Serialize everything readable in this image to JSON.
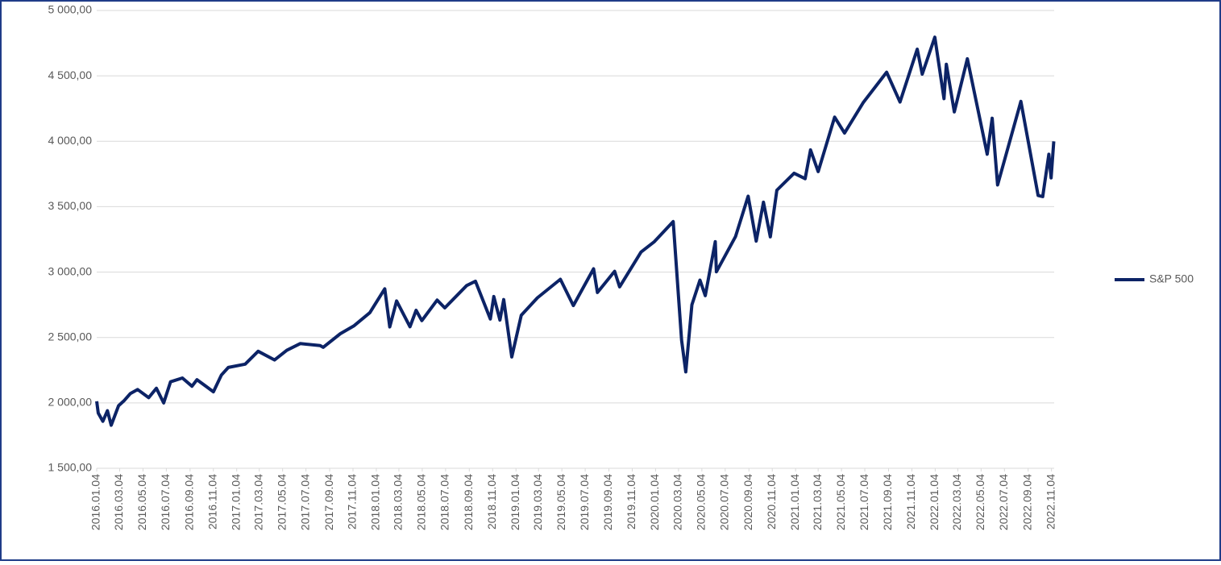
{
  "chart_data": {
    "type": "line",
    "x": [
      "2016.01.04",
      "2016.01.08",
      "2016.01.20",
      "2016.02.01",
      "2016.02.11",
      "2016.03.01",
      "2016.03.15",
      "2016.04.01",
      "2016.04.20",
      "2016.05.19",
      "2016.06.08",
      "2016.06.27",
      "2016.07.15",
      "2016.08.15",
      "2016.09.09",
      "2016.09.22",
      "2016.11.04",
      "2016.11.25",
      "2016.12.13",
      "2017.01.26",
      "2017.03.01",
      "2017.04.13",
      "2017.05.15",
      "2017.06.19",
      "2017.08.10",
      "2017.08.18",
      "2017.10.02",
      "2017.11.07",
      "2017.12.18",
      "2018.01.26",
      "2018.02.08",
      "2018.02.26",
      "2018.04.02",
      "2018.04.18",
      "2018.05.03",
      "2018.06.12",
      "2018.07.02",
      "2018.08.28",
      "2018.09.20",
      "2018.10.29",
      "2018.11.07",
      "2018.11.23",
      "2018.12.03",
      "2018.12.24",
      "2019.01.18",
      "2019.03.01",
      "2019.04.30",
      "2019.06.03",
      "2019.07.26",
      "2019.08.05",
      "2019.09.19",
      "2019.10.02",
      "2019.11.27",
      "2019.12.31",
      "2020.02.19",
      "2020.03.12",
      "2020.03.23",
      "2020.04.08",
      "2020.04.29",
      "2020.05.13",
      "2020.06.08",
      "2020.06.11",
      "2020.07.31",
      "2020.09.02",
      "2020.09.23",
      "2020.10.12",
      "2020.10.30",
      "2020.11.16",
      "2020.12.31",
      "2021.01.29",
      "2021.02.12",
      "2021.03.04",
      "2021.04.16",
      "2021.05.12",
      "2021.06.30",
      "2021.08.30",
      "2021.10.04",
      "2021.11.18",
      "2021.12.01",
      "2022.01.03",
      "2022.01.27",
      "2022.02.02",
      "2022.02.23",
      "2022.03.29",
      "2022.05.20",
      "2022.06.02",
      "2022.06.16",
      "2022.08.16",
      "2022.09.30",
      "2022.10.12",
      "2022.10.28",
      "2022.11.03",
      "2022.11.10"
    ],
    "series": [
      {
        "name": "S&P 500",
        "color": "#0c2366",
        "values": [
          2012,
          1922,
          1859,
          1940,
          1829,
          1978,
          2015,
          2072,
          2102,
          2040,
          2112,
          2000,
          2161,
          2190,
          2127,
          2177,
          2085,
          2213,
          2271,
          2296,
          2395,
          2328,
          2402,
          2453,
          2438,
          2425,
          2529,
          2590,
          2690,
          2872,
          2581,
          2779,
          2582,
          2708,
          2629,
          2786,
          2726,
          2897,
          2930,
          2641,
          2813,
          2633,
          2790,
          2351,
          2670,
          2803,
          2945,
          2744,
          3025,
          2844,
          3006,
          2887,
          3153,
          3230,
          3386,
          2480,
          2237,
          2750,
          2939,
          2820,
          3232,
          3002,
          3271,
          3580,
          3237,
          3534,
          3270,
          3626,
          3756,
          3714,
          3934,
          3768,
          4185,
          4063,
          4297,
          4528,
          4300,
          4704,
          4513,
          4796,
          4326,
          4589,
          4225,
          4631,
          3901,
          4176,
          3666,
          4305,
          3585,
          3577,
          3901,
          3720,
          3999
        ]
      }
    ],
    "xlim": [
      "2016.01.04",
      "2022.11.11"
    ],
    "xticks": [
      "2016.01.04",
      "2016.03.04",
      "2016.05.04",
      "2016.07.04",
      "2016.09.04",
      "2016.11.04",
      "2017.01.04",
      "2017.03.04",
      "2017.05.04",
      "2017.07.04",
      "2017.09.04",
      "2017.11.04",
      "2018.01.04",
      "2018.03.04",
      "2018.05.04",
      "2018.07.04",
      "2018.09.04",
      "2018.11.04",
      "2019.01.04",
      "2019.03.04",
      "2019.05.04",
      "2019.07.04",
      "2019.09.04",
      "2019.11.04",
      "2020.01.04",
      "2020.03.04",
      "2020.05.04",
      "2020.07.04",
      "2020.09.04",
      "2020.11.04",
      "2021.01.04",
      "2021.03.04",
      "2021.05.04",
      "2021.07.04",
      "2021.09.04",
      "2021.11.04",
      "2022.01.04",
      "2022.03.04",
      "2022.05.04",
      "2022.07.04",
      "2022.09.04",
      "2022.11.04"
    ],
    "ylim": [
      1500,
      5000
    ],
    "yticks": [
      {
        "value": 1500,
        "label": "1 500,00"
      },
      {
        "value": 2000,
        "label": "2 000,00"
      },
      {
        "value": 2500,
        "label": "2 500,00"
      },
      {
        "value": 3000,
        "label": "3 000,00"
      },
      {
        "value": 3500,
        "label": "3 500,00"
      },
      {
        "value": 4000,
        "label": "4 000,00"
      },
      {
        "value": 4500,
        "label": "4 500,00"
      },
      {
        "value": 5000,
        "label": "5 000,00"
      }
    ],
    "grid": true,
    "legend": "right"
  }
}
